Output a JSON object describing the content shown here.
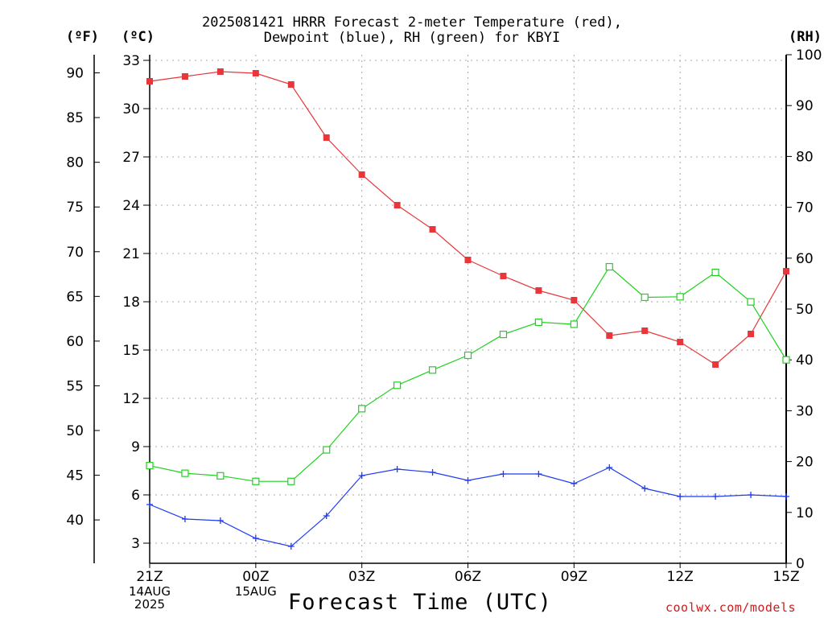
{
  "chart_data": {
    "type": "line",
    "title_line1": "2025081421 HRRR Forecast 2-meter Temperature (red),",
    "title_line2": "Dewpoint (blue), RH (green) for KBYI",
    "xlabel": "Forecast Time (UTC)",
    "unit_left_f": "(ºF)",
    "unit_left_c": "(ºC)",
    "unit_right": "(RH)",
    "credit": "coolwx.com/models",
    "x_ticks": [
      "21Z",
      "00Z",
      "03Z",
      "06Z",
      "09Z",
      "12Z",
      "15Z"
    ],
    "x_tick_hours": [
      0,
      3,
      6,
      9,
      12,
      15,
      18
    ],
    "x_sublabels": [
      {
        "hour": 0,
        "lines": [
          "14AUG",
          "2025"
        ]
      },
      {
        "hour": 3,
        "lines": [
          "15AUG"
        ]
      }
    ],
    "y_left_c": {
      "ticks": [
        3,
        6,
        9,
        12,
        15,
        18,
        21,
        24,
        27,
        30,
        33
      ],
      "lim": [
        1.75,
        33.35
      ]
    },
    "y_left_f": {
      "ticks": [
        40,
        45,
        50,
        55,
        60,
        65,
        70,
        75,
        80,
        85,
        90
      ]
    },
    "y_right_rh": {
      "ticks": [
        0,
        10,
        20,
        30,
        40,
        50,
        60,
        70,
        80,
        90,
        100
      ],
      "lim": [
        0,
        100
      ]
    },
    "grid": true,
    "hours": [
      0,
      1,
      2,
      3,
      4,
      5,
      6,
      7,
      8,
      9,
      10,
      11,
      12,
      13,
      14,
      15,
      16,
      17,
      18
    ],
    "series": [
      {
        "color": "#e8363a",
        "axis": "c",
        "marker": "filled-square",
        "values": [
          31.7,
          32.0,
          32.3,
          32.2,
          31.5,
          28.2,
          25.9,
          24.0,
          22.5,
          20.6,
          19.6,
          18.7,
          18.1,
          15.9,
          16.2,
          15.5,
          14.1,
          16.0,
          19.9
        ]
      },
      {
        "color": "#1e3cf0",
        "axis": "c",
        "marker": "plus",
        "values": [
          5.4,
          4.5,
          4.4,
          3.3,
          2.8,
          4.7,
          7.2,
          7.6,
          7.4,
          6.9,
          7.3,
          7.3,
          6.7,
          7.7,
          6.4,
          5.9,
          5.9,
          6.0,
          5.9
        ]
      },
      {
        "color": "#1ed21e",
        "axis": "rh",
        "marker": "open-square",
        "values": [
          19.2,
          17.7,
          17.2,
          16.1,
          16.1,
          22.3,
          30.4,
          35.0,
          38.0,
          40.9,
          45.0,
          47.4,
          47.0,
          58.3,
          52.3,
          52.4,
          57.2,
          51.4,
          40.0
        ]
      }
    ]
  }
}
